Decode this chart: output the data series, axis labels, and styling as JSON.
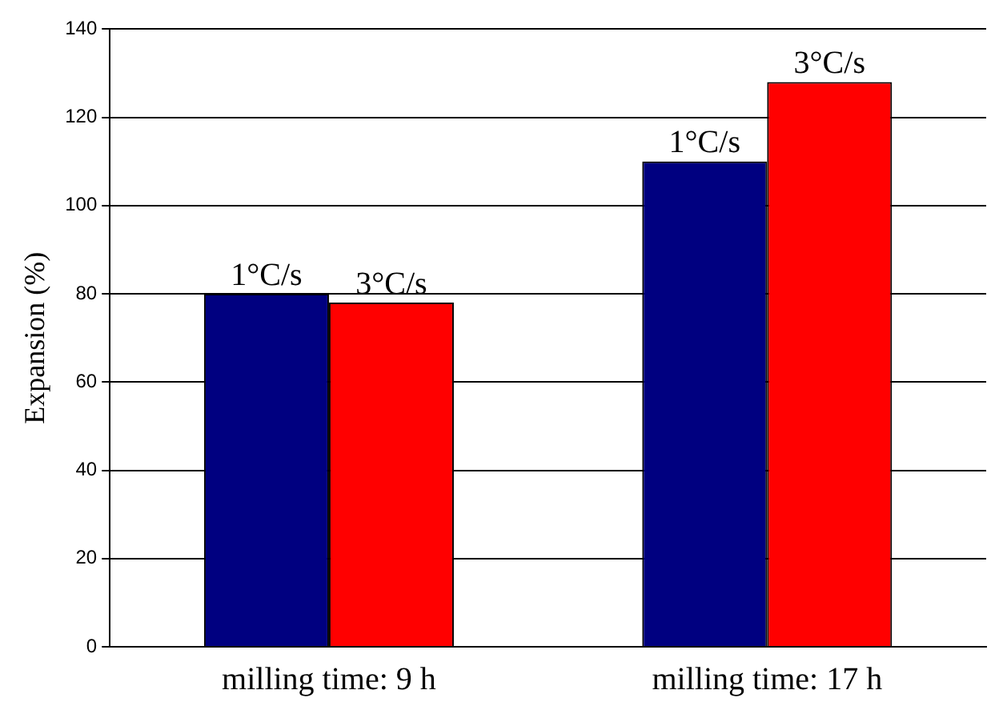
{
  "chart_data": {
    "type": "bar",
    "ylabel": "Expansion (%)",
    "categories": [
      "milling time: 9 h",
      "milling time: 17 h"
    ],
    "series": [
      {
        "name": "1°C/s",
        "color": "#000080",
        "values": [
          80,
          110
        ]
      },
      {
        "name": "3°C/s",
        "color": "#ff0000",
        "values": [
          78,
          128
        ]
      }
    ],
    "ylim": [
      0,
      140
    ],
    "yticks": [
      0,
      20,
      40,
      60,
      80,
      100,
      120,
      140
    ],
    "grid": "y",
    "legend": false
  }
}
